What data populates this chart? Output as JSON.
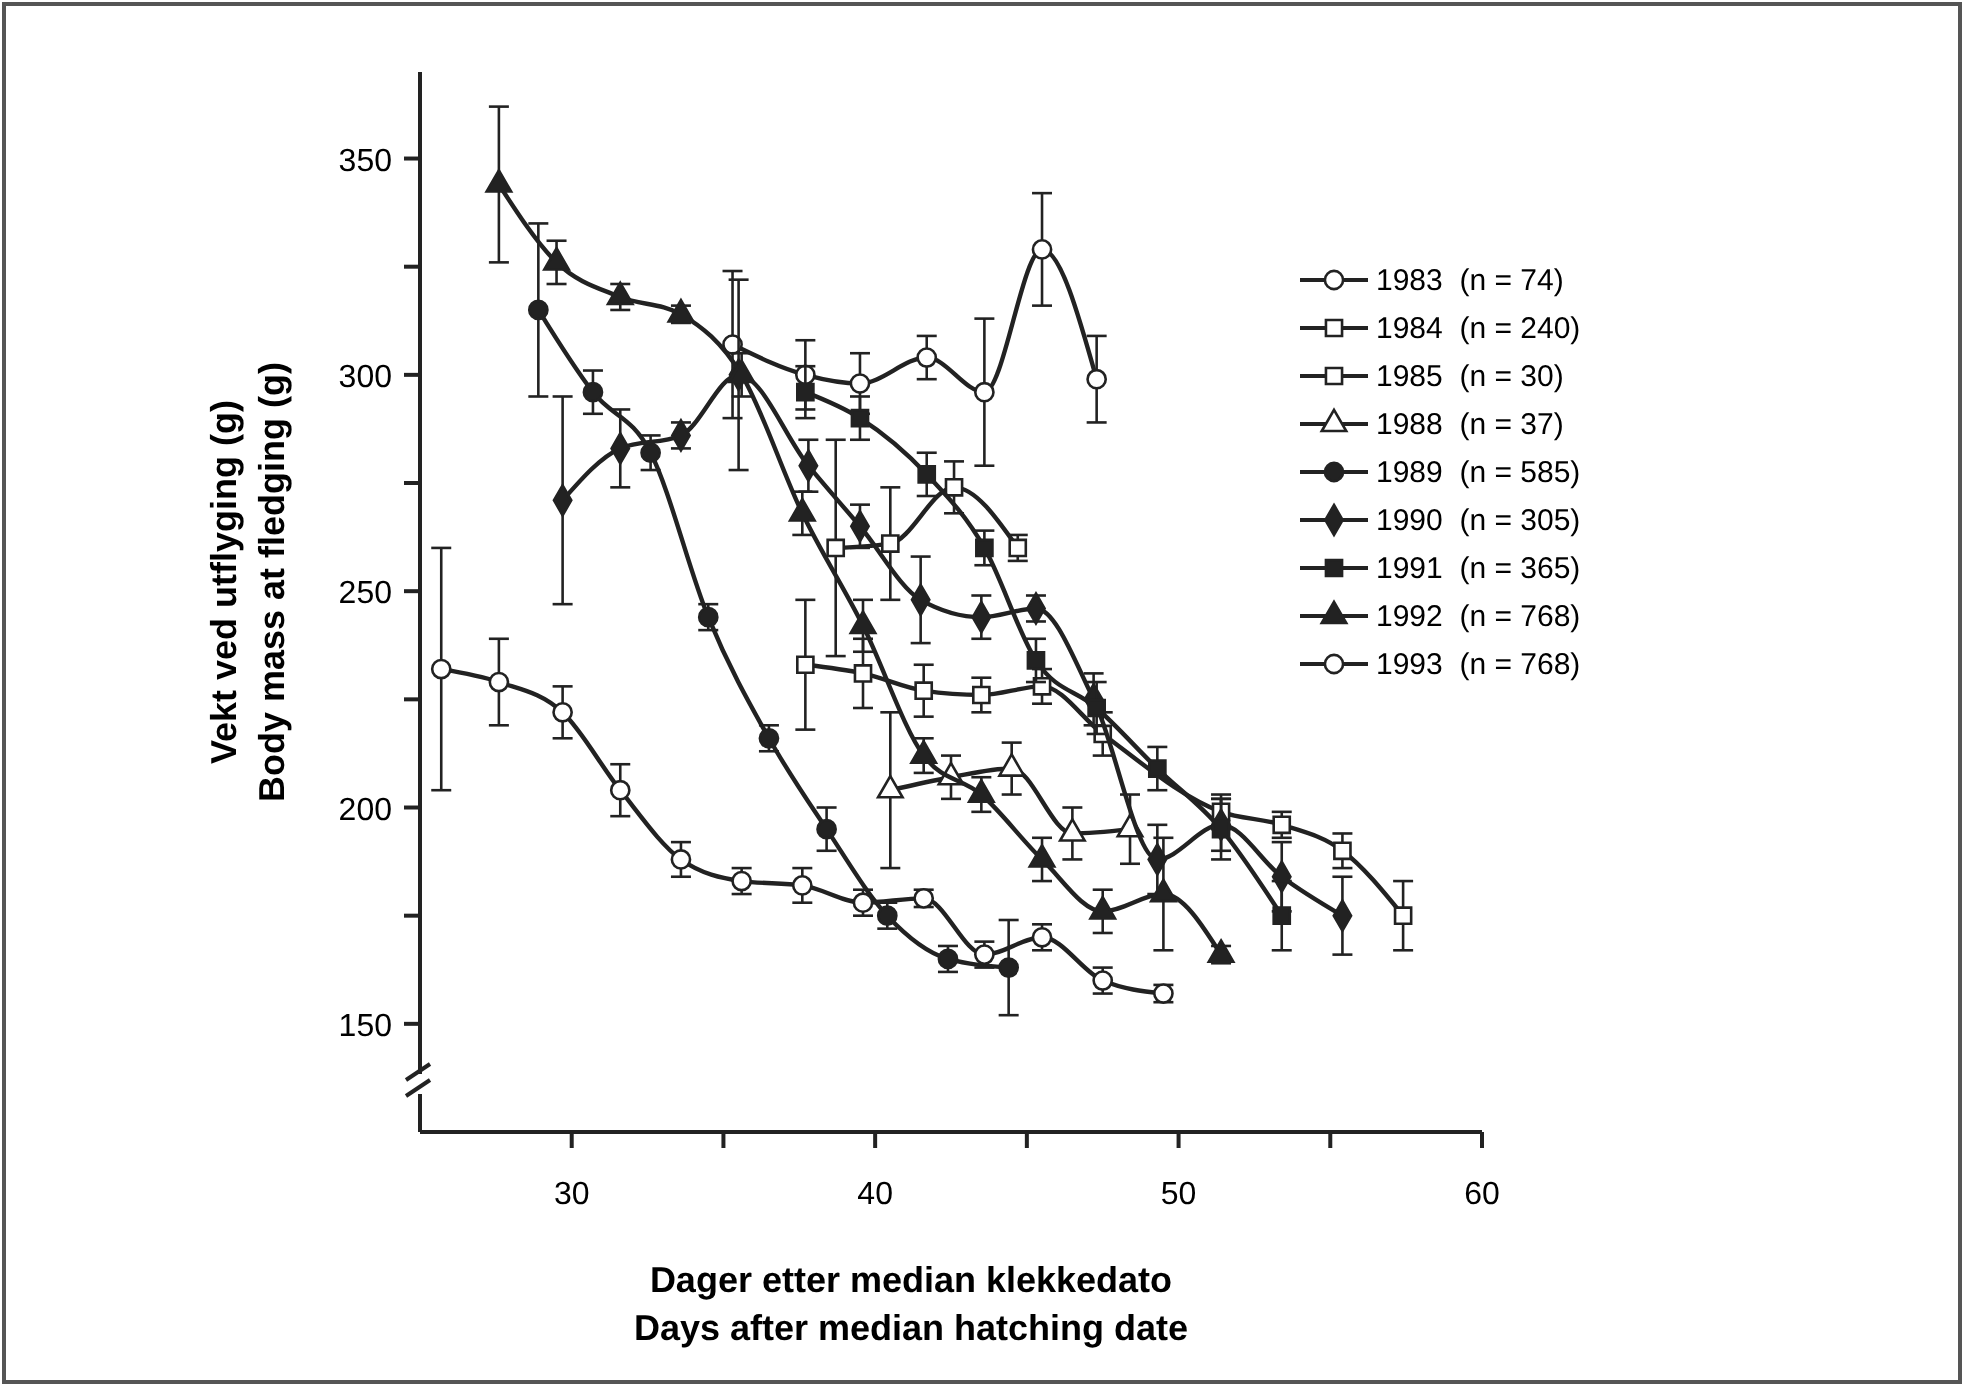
{
  "chart_data": {
    "type": "line",
    "xlabel": "Dager etter median klekkedato\nDays after median hatching date",
    "ylabel": "Vekt ved utflyging (g)\nBody mass at fledging (g)",
    "xlim": [
      25,
      60
    ],
    "xticks": [
      30,
      {
        "value": 35,
        "label": null
      },
      40,
      {
        "value": 45,
        "label": null
      },
      50,
      {
        "value": 55,
        "label": null
      },
      60
    ],
    "ylim": [
      125,
      370
    ],
    "yticks": [
      150,
      {
        "value": 175,
        "label": null
      },
      200,
      {
        "value": 225,
        "label": null
      },
      250,
      {
        "value": 275,
        "label": null
      },
      300,
      {
        "value": 325,
        "label": null
      },
      350
    ],
    "grid": false,
    "legend": "top right",
    "series": [
      {
        "name": "1983  (n = 74)",
        "color": "#222222",
        "marker": "circle-open",
        "x": [
          35.3,
          37.7,
          39.5,
          41.7,
          43.6,
          45.5,
          47.3
        ],
        "values": [
          307,
          300,
          298,
          304,
          296,
          329,
          299
        ],
        "errors": [
          17,
          8,
          7,
          5,
          17,
          13,
          10
        ]
      },
      {
        "name": "1984  (n = 240)",
        "color": "#222222",
        "marker": "square-open",
        "x": [
          37.7,
          39.6,
          41.6,
          43.5,
          45.5,
          47.5,
          51.4,
          53.4,
          55.4,
          57.4
        ],
        "values": [
          233,
          231,
          227,
          226,
          228,
          217,
          199,
          196,
          190,
          175
        ],
        "errors": [
          15,
          8,
          6,
          4,
          4,
          5,
          4,
          3,
          4,
          8
        ]
      },
      {
        "name": "1985  (n = 30)",
        "color": "#222222",
        "marker": "square-open",
        "x": [
          38.7,
          40.5,
          42.6,
          44.7
        ],
        "values": [
          260,
          261,
          274,
          260
        ],
        "errors": [
          25,
          13,
          6,
          3
        ]
      },
      {
        "name": "1988  (n = 37)",
        "color": "#222222",
        "marker": "triangle-open",
        "x": [
          40.5,
          42.5,
          44.5,
          46.5,
          48.4
        ],
        "values": [
          204,
          207,
          209,
          194,
          195
        ],
        "errors": [
          18,
          5,
          6,
          6,
          8
        ]
      },
      {
        "name": "1989  (n = 585)",
        "color": "#222222",
        "marker": "circle",
        "x": [
          28.9,
          30.7,
          32.6,
          34.5,
          36.5,
          38.4,
          40.4,
          42.4,
          44.4
        ],
        "values": [
          315,
          296,
          282,
          244,
          216,
          195,
          175,
          165,
          163
        ],
        "errors": [
          20,
          5,
          4,
          3,
          3,
          5,
          3,
          3,
          11
        ]
      },
      {
        "name": "1990  (n = 305)",
        "color": "#222222",
        "marker": "diamond",
        "x": [
          29.7,
          31.6,
          33.6,
          35.5,
          37.8,
          39.5,
          41.5,
          43.5,
          45.3,
          47.2,
          49.3,
          51.4,
          53.4,
          55.4
        ],
        "values": [
          271,
          283,
          286,
          300,
          279,
          265,
          248,
          244,
          246,
          225,
          188,
          196,
          184,
          175
        ],
        "errors": [
          24,
          9,
          3,
          22,
          6,
          5,
          10,
          5,
          3,
          6,
          8,
          6,
          8,
          9
        ]
      },
      {
        "name": "1991  (n = 365)",
        "color": "#222222",
        "marker": "square",
        "x": [
          37.7,
          39.5,
          41.7,
          43.6,
          45.3,
          47.3,
          49.3,
          51.4,
          53.4
        ],
        "values": [
          296,
          290,
          277,
          260,
          234,
          223,
          209,
          195,
          175
        ],
        "errors": [
          6,
          5,
          5,
          4,
          5,
          6,
          5,
          7,
          8
        ]
      },
      {
        "name": "1992  (n = 768)",
        "color": "#222222",
        "marker": "triangle",
        "x": [
          27.6,
          29.5,
          31.6,
          33.6,
          35.6,
          37.6,
          39.6,
          41.6,
          43.5,
          45.5,
          47.5,
          49.5,
          51.4
        ],
        "values": [
          344,
          326,
          318,
          314,
          300,
          268,
          242,
          212,
          203,
          188,
          176,
          180,
          166
        ],
        "errors": [
          18,
          5,
          3,
          2,
          5,
          5,
          6,
          4,
          4,
          5,
          5,
          13,
          2
        ]
      },
      {
        "name": "1993  (n = 768)",
        "color": "#222222",
        "marker": "circle-open",
        "x": [
          25.7,
          27.6,
          29.7,
          31.6,
          33.6,
          35.6,
          37.6,
          39.6,
          41.6,
          43.6,
          45.5,
          47.5,
          49.5
        ],
        "values": [
          232,
          229,
          222,
          204,
          188,
          183,
          182,
          178,
          179,
          166,
          170,
          160,
          157
        ],
        "errors": [
          28,
          10,
          6,
          6,
          4,
          3,
          4,
          3,
          2,
          3,
          3,
          3,
          2
        ]
      }
    ]
  }
}
